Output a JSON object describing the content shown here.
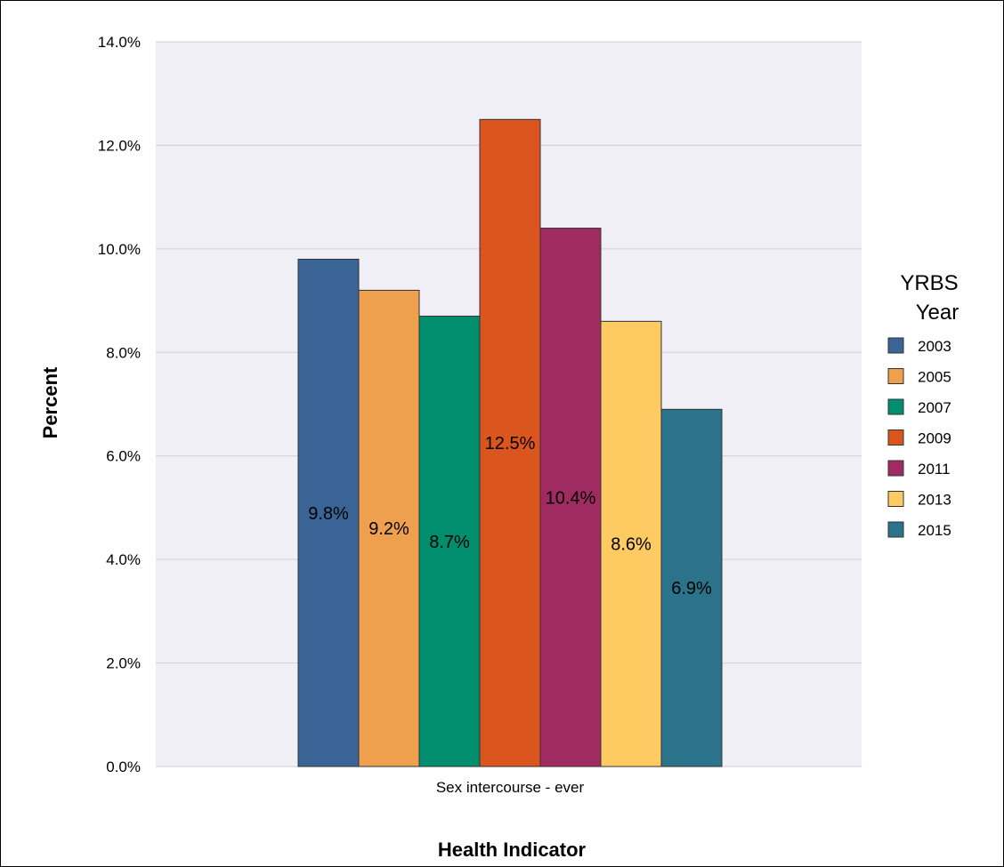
{
  "chart_data": {
    "type": "bar",
    "categories": [
      "Sex intercourse - ever"
    ],
    "series": [
      {
        "name": "2003",
        "values": [
          9.8
        ],
        "label": "9.8%",
        "color": "#3b6496"
      },
      {
        "name": "2005",
        "values": [
          9.2
        ],
        "label": "9.2%",
        "color": "#eea04f"
      },
      {
        "name": "2007",
        "values": [
          8.7
        ],
        "label": "8.7%",
        "color": "#008e6f"
      },
      {
        "name": "2009",
        "values": [
          12.5
        ],
        "label": "12.5%",
        "color": "#db561e"
      },
      {
        "name": "2011",
        "values": [
          10.4
        ],
        "label": "10.4%",
        "color": "#a02b60"
      },
      {
        "name": "2013",
        "values": [
          8.6
        ],
        "label": "8.6%",
        "color": "#fdcb62"
      },
      {
        "name": "2015",
        "values": [
          6.9
        ],
        "label": "6.9%",
        "color": "#2a738b"
      }
    ],
    "xlabel": "Health Indicator",
    "ylabel": "Percent",
    "ylim": [
      0,
      14
    ],
    "yticks": [
      "0.0%",
      "2.0%",
      "4.0%",
      "6.0%",
      "8.0%",
      "10.0%",
      "12.0%",
      "14.0%"
    ],
    "ytick_values": [
      0,
      2,
      4,
      6,
      8,
      10,
      12,
      14
    ],
    "legend": {
      "title_line1": "YRBS",
      "title_line2": "Year",
      "position": "right"
    },
    "grid": true,
    "plot_background": "#f0eff5",
    "grid_color": "#cfcfd6"
  }
}
